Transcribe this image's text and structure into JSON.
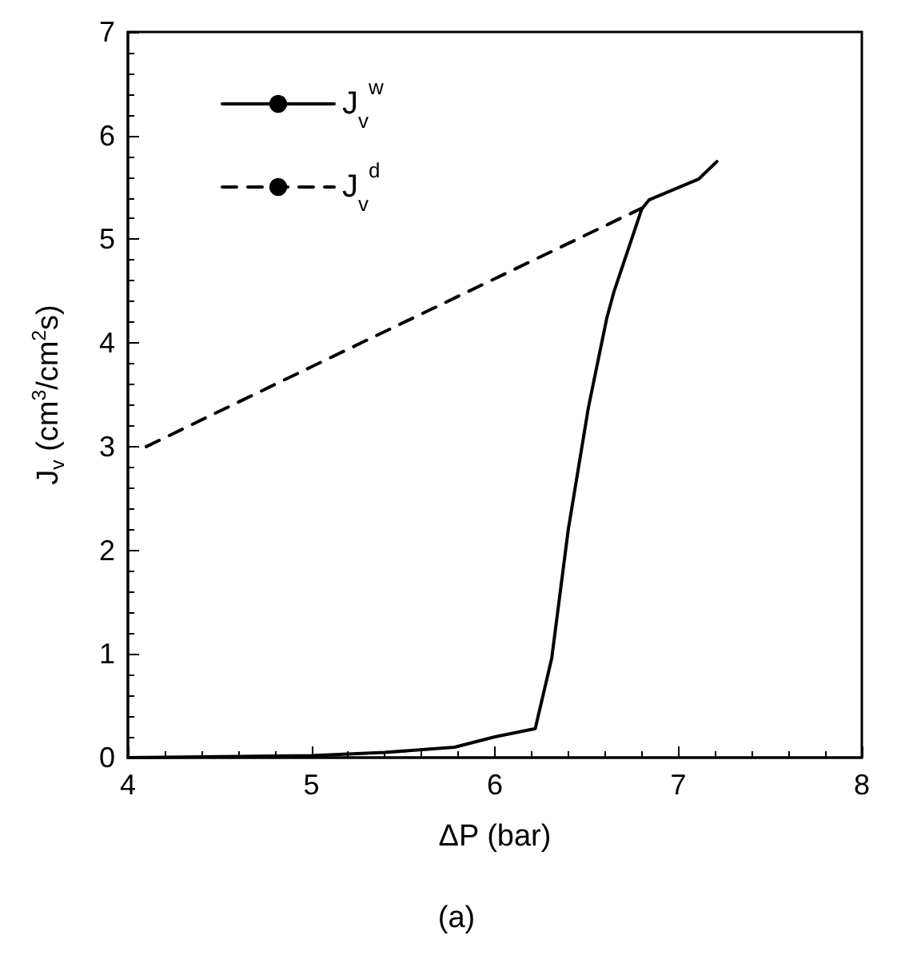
{
  "chart_data": {
    "type": "line",
    "xlabel": "ΔP (bar)",
    "ylabel": "J$_{v}$ (cm$^{3}$/cm$^{2}$s)",
    "annotations": [
      "(a)"
    ],
    "xlim": [
      4,
      8
    ],
    "xticks": [
      4,
      5,
      6,
      7,
      8
    ],
    "ylim": [
      0,
      7
    ],
    "yticks": [
      0,
      1,
      2,
      3,
      4,
      5,
      6,
      7
    ],
    "grid": false,
    "legend": "top left",
    "marker": "none",
    "series": [
      {
        "name": "J$_{v}$$^{w}$",
        "color": "#000000",
        "line_style": "solid",
        "x": [
          4,
          5,
          5.4,
          5.78,
          6.0,
          6.22,
          6.31,
          6.4,
          6.51,
          6.61,
          6.65,
          6.8,
          6.84,
          7.11,
          7.21
        ],
        "values": [
          0,
          0.02,
          0.05,
          0.1,
          0.2,
          0.28,
          0.96,
          2.2,
          3.38,
          4.24,
          4.5,
          5.29,
          5.38,
          5.58,
          5.75
        ]
      },
      {
        "name": "J$_{v}$$^{d}$",
        "color": "#000000",
        "line_style": "dashed",
        "x": [
          4.1,
          5,
          6,
          6.8
        ],
        "values": [
          3.0,
          3.77,
          4.62,
          5.3
        ]
      }
    ]
  }
}
